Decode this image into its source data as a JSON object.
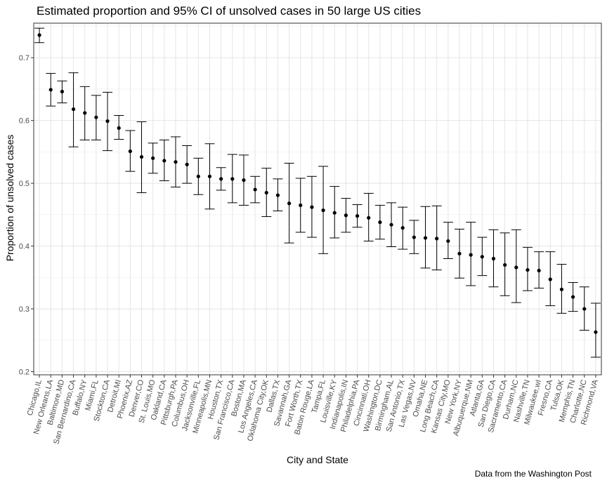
{
  "chart_data": {
    "type": "scatter",
    "title": "Estimated proportion and 95% CI of unsolved cases in 50 large US cities",
    "xlabel": "City and State",
    "ylabel": "Proportion of unsolved cases",
    "caption": "Data from the Washington Post",
    "ylim": [
      0.195,
      0.755
    ],
    "y_ticks": [
      0.2,
      0.3,
      0.4,
      0.5,
      0.6,
      0.7
    ],
    "y_tick_labels": [
      "0.2",
      "0.3",
      "0.4",
      "0.5",
      "0.6",
      "0.7"
    ],
    "grid": true,
    "legend": "none",
    "colors": {
      "point": "#000000",
      "grid_major": "#e5e5e5",
      "grid_minor": "#f2f2f2",
      "border": "#333333"
    },
    "categories": [
      "Chicago,IL",
      "New Orleans,LA",
      "Baltimore,MD",
      "San Bernardino,CA",
      "Buffalo,NY",
      "Miami,FL",
      "Stockton,CA",
      "Detroit,MI",
      "Phoenix,AZ",
      "Denver,CO",
      "St. Louis,MO",
      "Oakland,CA",
      "Pittsburgh,PA",
      "Columbus,OH",
      "Jacksonville,FL",
      "Minneapolis,MN",
      "Houston,TX",
      "San Francisco,CA",
      "Boston,MA",
      "Los Angeles,CA",
      "Oklahoma City,OK",
      "Dallas,TX",
      "Savannah,GA",
      "Fort Worth,TX",
      "Baton Rouge,LA",
      "Tampa,FL",
      "Louisville,KY",
      "Indianapolis,IN",
      "Philadelphia,PA",
      "Cincinnati,OH",
      "Washington,DC",
      "Birmingham,AL",
      "San Antonio,TX",
      "Las Vegas,NV",
      "Omaha,NE",
      "Long Beach,CA",
      "Kansas City,MO",
      "New York,NY",
      "Albuquerque,NM",
      "Atlanta,GA",
      "San Diego,CA",
      "Sacramento,CA",
      "Durham,NC",
      "Nashville,TN",
      "Milwaukee,wI",
      "Fresno,CA",
      "Tulsa,OK",
      "Memphis,TN",
      "Charlotte,NC",
      "Richmond,VA"
    ],
    "estimate": [
      0.736,
      0.649,
      0.646,
      0.618,
      0.612,
      0.605,
      0.599,
      0.588,
      0.551,
      0.542,
      0.54,
      0.536,
      0.534,
      0.53,
      0.511,
      0.511,
      0.507,
      0.507,
      0.505,
      0.49,
      0.485,
      0.481,
      0.468,
      0.465,
      0.462,
      0.457,
      0.453,
      0.449,
      0.448,
      0.445,
      0.438,
      0.434,
      0.429,
      0.414,
      0.413,
      0.412,
      0.408,
      0.388,
      0.386,
      0.383,
      0.38,
      0.37,
      0.366,
      0.362,
      0.361,
      0.347,
      0.331,
      0.319,
      0.3,
      0.263
    ],
    "ci_low": [
      0.724,
      0.623,
      0.628,
      0.558,
      0.569,
      0.569,
      0.552,
      0.57,
      0.519,
      0.485,
      0.516,
      0.504,
      0.494,
      0.5,
      0.482,
      0.459,
      0.489,
      0.469,
      0.465,
      0.469,
      0.447,
      0.456,
      0.405,
      0.422,
      0.414,
      0.388,
      0.413,
      0.422,
      0.43,
      0.408,
      0.411,
      0.399,
      0.395,
      0.388,
      0.365,
      0.362,
      0.38,
      0.349,
      0.337,
      0.353,
      0.335,
      0.321,
      0.31,
      0.329,
      0.333,
      0.305,
      0.293,
      0.296,
      0.266,
      0.223
    ],
    "ci_high": [
      0.747,
      0.675,
      0.663,
      0.676,
      0.654,
      0.64,
      0.645,
      0.608,
      0.584,
      0.598,
      0.564,
      0.569,
      0.574,
      0.56,
      0.54,
      0.563,
      0.525,
      0.546,
      0.545,
      0.511,
      0.524,
      0.507,
      0.532,
      0.508,
      0.511,
      0.527,
      0.495,
      0.476,
      0.466,
      0.484,
      0.465,
      0.469,
      0.462,
      0.441,
      0.463,
      0.464,
      0.438,
      0.427,
      0.438,
      0.414,
      0.426,
      0.421,
      0.426,
      0.398,
      0.391,
      0.391,
      0.371,
      0.342,
      0.335,
      0.309
    ]
  }
}
